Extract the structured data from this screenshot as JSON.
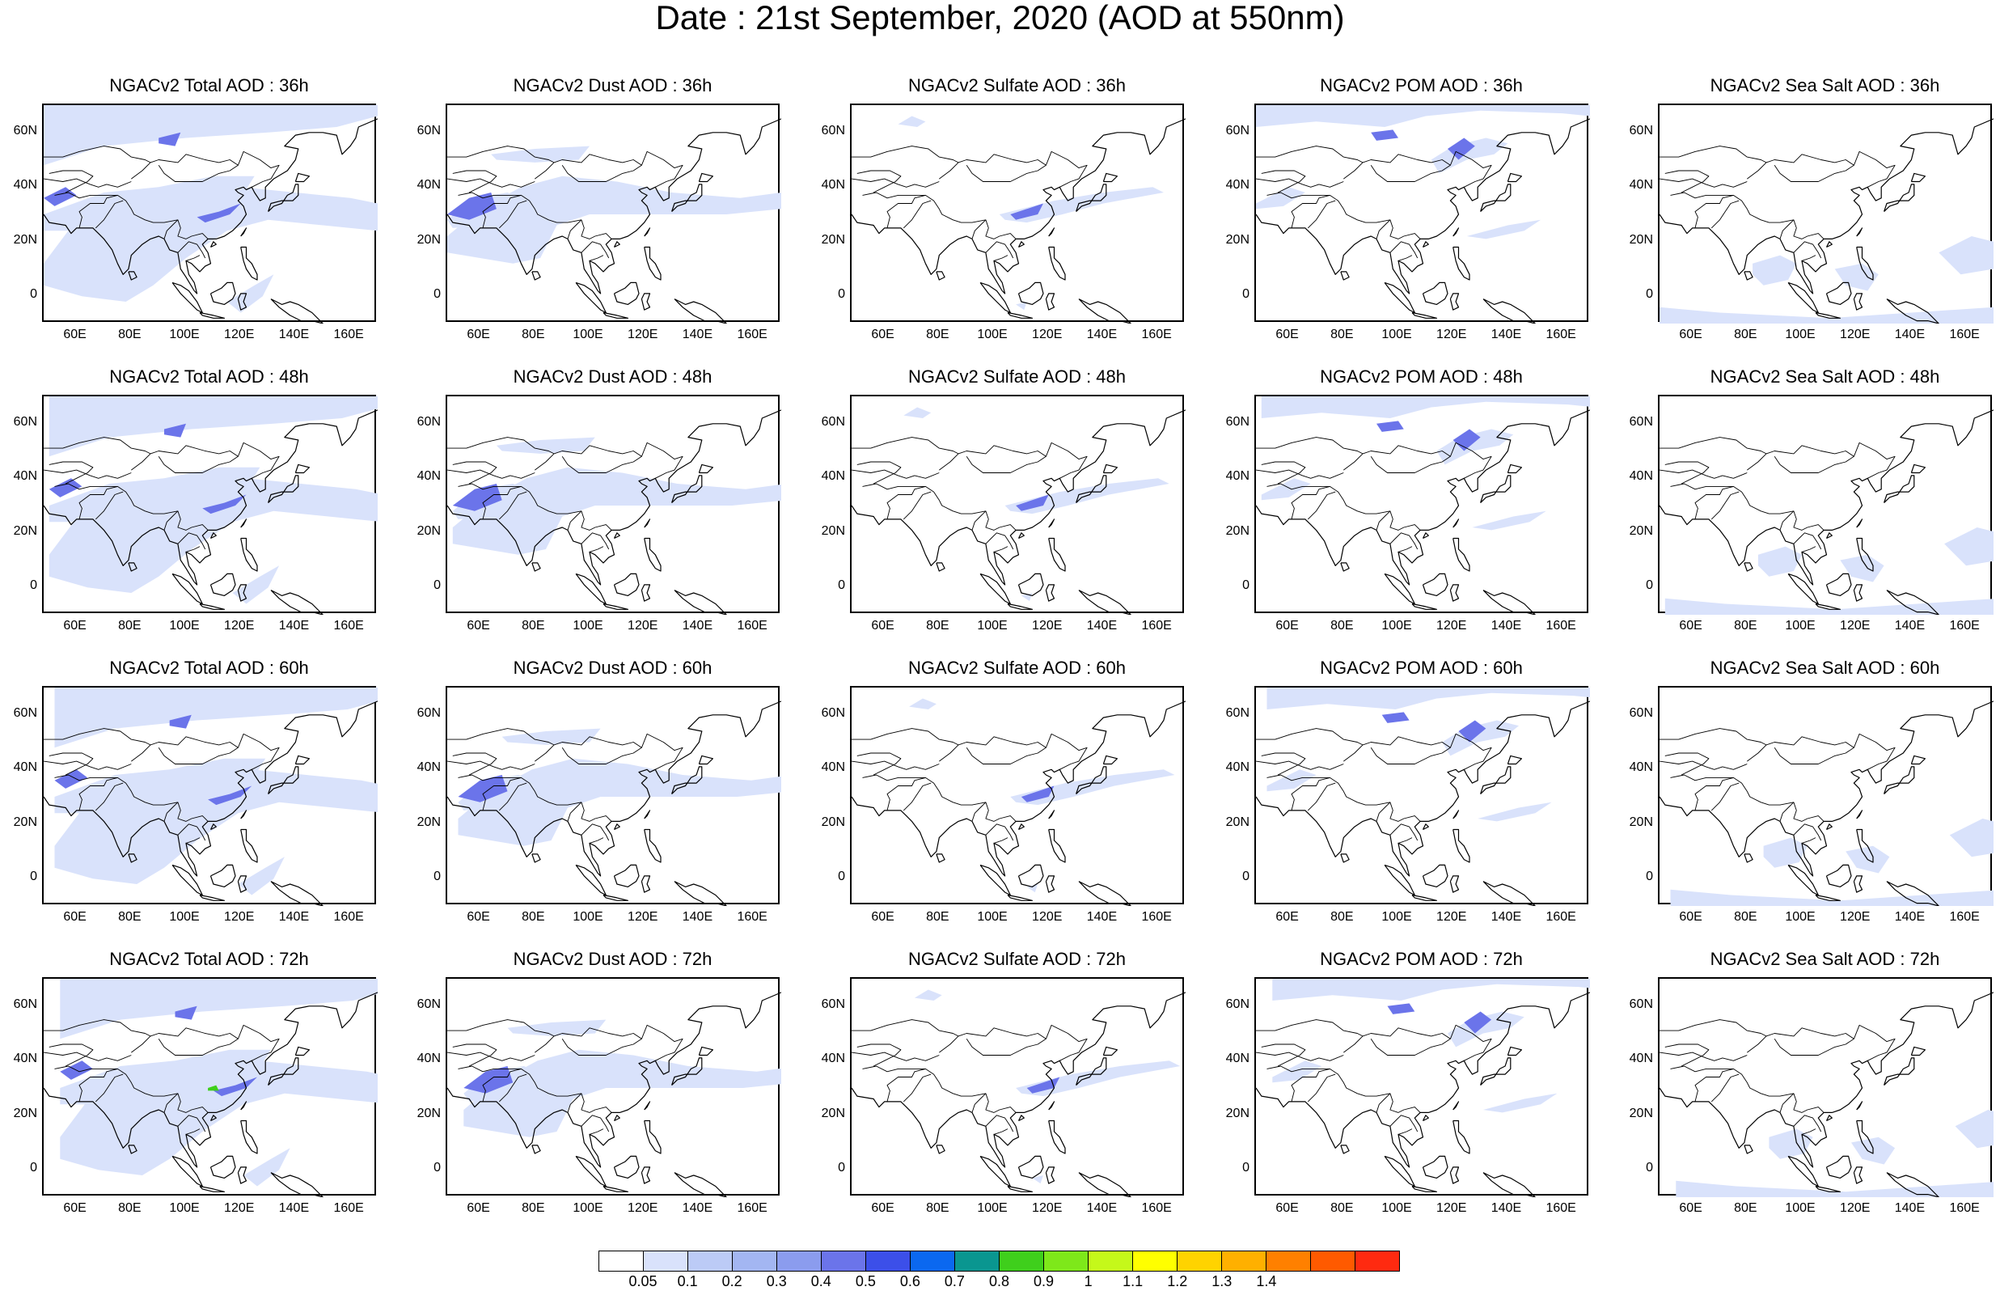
{
  "main_title": "Date : 21st  September, 2020 (AOD at 550nm)",
  "panels": [
    [
      {
        "title": "NGACv2 Total AOD : 36h"
      },
      {
        "title": "NGACv2 Dust AOD : 36h"
      },
      {
        "title": "NGACv2 Sulfate AOD : 36h"
      },
      {
        "title": "NGACv2 POM AOD : 36h"
      },
      {
        "title": "NGACv2 Sea Salt AOD : 36h"
      }
    ],
    [
      {
        "title": "NGACv2 Total AOD : 48h"
      },
      {
        "title": "NGACv2 Dust AOD : 48h"
      },
      {
        "title": "NGACv2 Sulfate AOD : 48h"
      },
      {
        "title": "NGACv2 POM AOD : 48h"
      },
      {
        "title": "NGACv2 Sea Salt AOD : 48h"
      }
    ],
    [
      {
        "title": "NGACv2 Total AOD : 60h"
      },
      {
        "title": "NGACv2 Dust AOD : 60h"
      },
      {
        "title": "NGACv2 Sulfate AOD : 60h"
      },
      {
        "title": "NGACv2 POM AOD : 60h"
      },
      {
        "title": "NGACv2 Sea Salt AOD : 60h"
      }
    ],
    [
      {
        "title": "NGACv2 Total AOD : 72h"
      },
      {
        "title": "NGACv2 Dust AOD : 72h"
      },
      {
        "title": "NGACv2 Sulfate AOD : 72h"
      },
      {
        "title": "NGACv2 POM AOD : 72h"
      },
      {
        "title": "NGACv2 Sea Salt  AOD : 72h"
      }
    ]
  ],
  "map_extent": {
    "lon_range": [
      48,
      170
    ],
    "lat_range": [
      -10,
      70
    ]
  },
  "lat_ticks": [
    {
      "value": 60,
      "label": "60N"
    },
    {
      "value": 40,
      "label": "40N"
    },
    {
      "value": 20,
      "label": "20N"
    },
    {
      "value": 0,
      "label": "0"
    }
  ],
  "lon_ticks": [
    {
      "value": 60,
      "label": "60E"
    },
    {
      "value": 80,
      "label": "80E"
    },
    {
      "value": 100,
      "label": "100E"
    },
    {
      "value": 120,
      "label": "120E"
    },
    {
      "value": 140,
      "label": "140E"
    },
    {
      "value": 160,
      "label": "160E"
    }
  ],
  "colorbar": {
    "colors": [
      "#ffffff",
      "#d9e2fb",
      "#bccbf6",
      "#a3b6f2",
      "#8b9cee",
      "#6b74ea",
      "#3c4fe9",
      "#0b68f0",
      "#0a9690",
      "#3fcf1c",
      "#7ee81a",
      "#c5f81a",
      "#ffff00",
      "#ffd300",
      "#ffb000",
      "#ff8000",
      "#ff5a00",
      "#ff2a10"
    ],
    "labels": [
      "0.05",
      "0.1",
      "0.2",
      "0.3",
      "0.4",
      "0.5",
      "0.6",
      "0.7",
      "0.8",
      "0.9",
      "1",
      "1.1",
      "1.2",
      "1.3",
      "1.4"
    ]
  },
  "colors": {
    "light_blue": "#d9e2fb",
    "mid_blue": "#a3b6f2",
    "strong_blue": "#6b74ea",
    "green_hotspot": "#3fcf1c",
    "coastline": "#000000"
  }
}
